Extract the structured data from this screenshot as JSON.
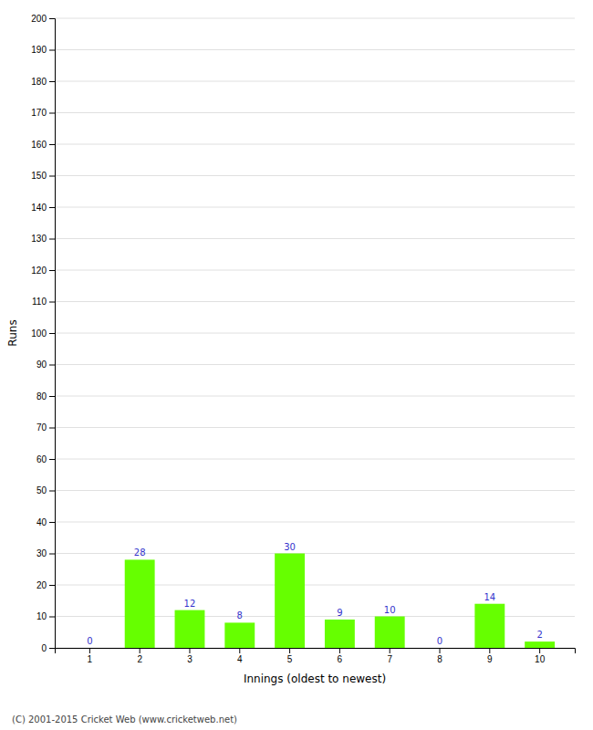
{
  "chart_data": {
    "type": "bar",
    "categories": [
      "1",
      "2",
      "3",
      "4",
      "5",
      "6",
      "7",
      "8",
      "9",
      "10"
    ],
    "values": [
      0,
      28,
      12,
      8,
      30,
      9,
      10,
      0,
      14,
      2
    ],
    "color": "#66ff00",
    "xlabel": "Innings (oldest to newest)",
    "ylabel": "Runs",
    "ylim": [
      0,
      200
    ],
    "yticks": [
      0,
      10,
      20,
      30,
      40,
      50,
      60,
      70,
      80,
      90,
      100,
      110,
      120,
      130,
      140,
      150,
      160,
      170,
      180,
      190,
      200
    ],
    "grid": true,
    "data_labels": true,
    "annotations": [
      "(C) 2001-2015 Cricket Web (www.cricketweb.net)"
    ]
  }
}
